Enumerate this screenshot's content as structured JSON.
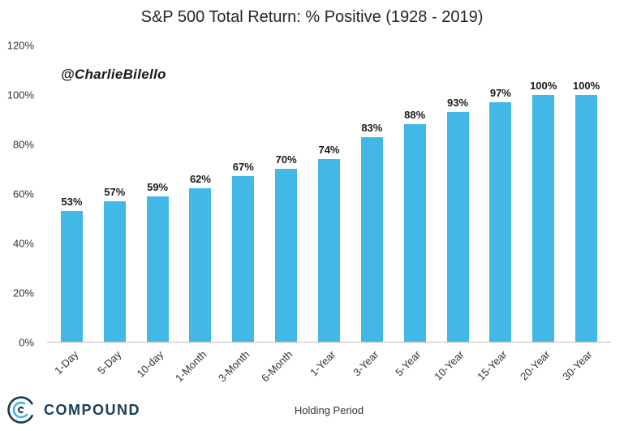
{
  "title": "S&P 500 Total Return: % Positive (1928 - 2019)",
  "annotation": "@CharlieBilello",
  "xlabel": "Holding Period",
  "logo": {
    "text": "COMPOUND"
  },
  "chart_data": {
    "type": "bar",
    "title": "S&P 500 Total Return: % Positive (1928 - 2019)",
    "categories": [
      "1-Day",
      "5-Day",
      "10-day",
      "1-Month",
      "3-Month",
      "6-Month",
      "1-Year",
      "3-Year",
      "5-Year",
      "10-Year",
      "15-Year",
      "20-Year",
      "30-Year"
    ],
    "values": [
      53,
      57,
      59,
      62,
      67,
      70,
      74,
      83,
      88,
      93,
      97,
      100,
      100
    ],
    "value_labels": [
      "53%",
      "57%",
      "59%",
      "62%",
      "67%",
      "70%",
      "74%",
      "83%",
      "88%",
      "93%",
      "97%",
      "100%",
      "100%"
    ],
    "xlabel": "Holding Period",
    "ylabel": "",
    "ylim": [
      0,
      120
    ],
    "yticks": [
      0,
      20,
      40,
      60,
      80,
      100,
      120
    ],
    "ytick_labels": [
      "0%",
      "20%",
      "40%",
      "60%",
      "80%",
      "100%",
      "120%"
    ],
    "bar_color": "#41B8E6",
    "grid": false,
    "legend": false
  }
}
